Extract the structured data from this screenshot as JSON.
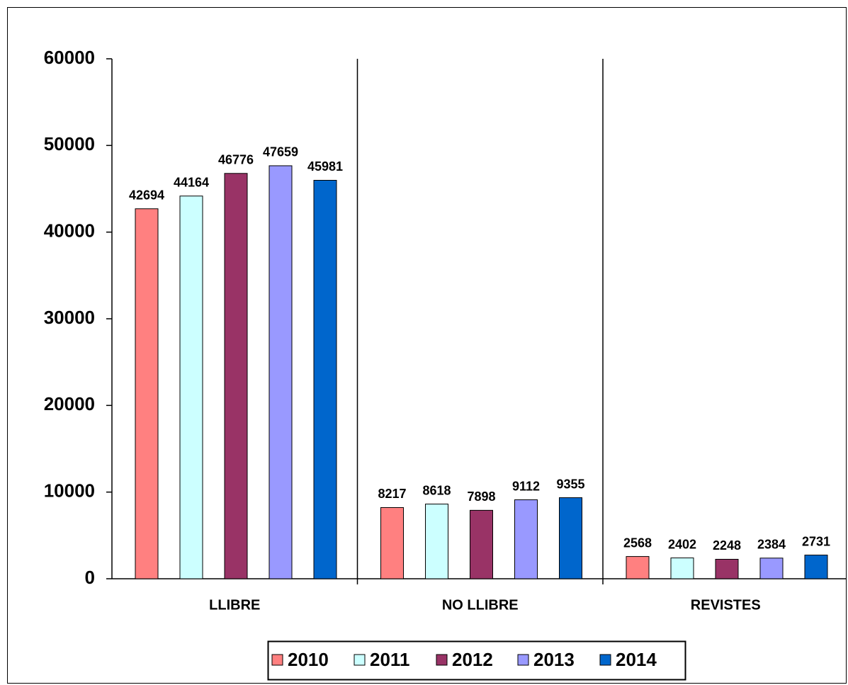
{
  "chart_data": {
    "type": "bar",
    "categories": [
      "LLIBRE",
      "NO LLIBRE",
      "REVISTES"
    ],
    "series": [
      {
        "name": "2010",
        "color": "#ff8080",
        "values": [
          42694,
          8217,
          2568
        ]
      },
      {
        "name": "2011",
        "color": "#ccffff",
        "values": [
          44164,
          8618,
          2402
        ]
      },
      {
        "name": "2012",
        "color": "#993366",
        "values": [
          46776,
          7898,
          2248
        ]
      },
      {
        "name": "2013",
        "color": "#9999ff",
        "values": [
          47659,
          9112,
          2384
        ]
      },
      {
        "name": "2014",
        "color": "#0066cc",
        "values": [
          45981,
          9355,
          2731
        ]
      }
    ],
    "ylim": [
      0,
      60000
    ],
    "yticks": [
      0,
      10000,
      20000,
      30000,
      40000,
      50000,
      60000
    ],
    "legend": "bottom"
  }
}
